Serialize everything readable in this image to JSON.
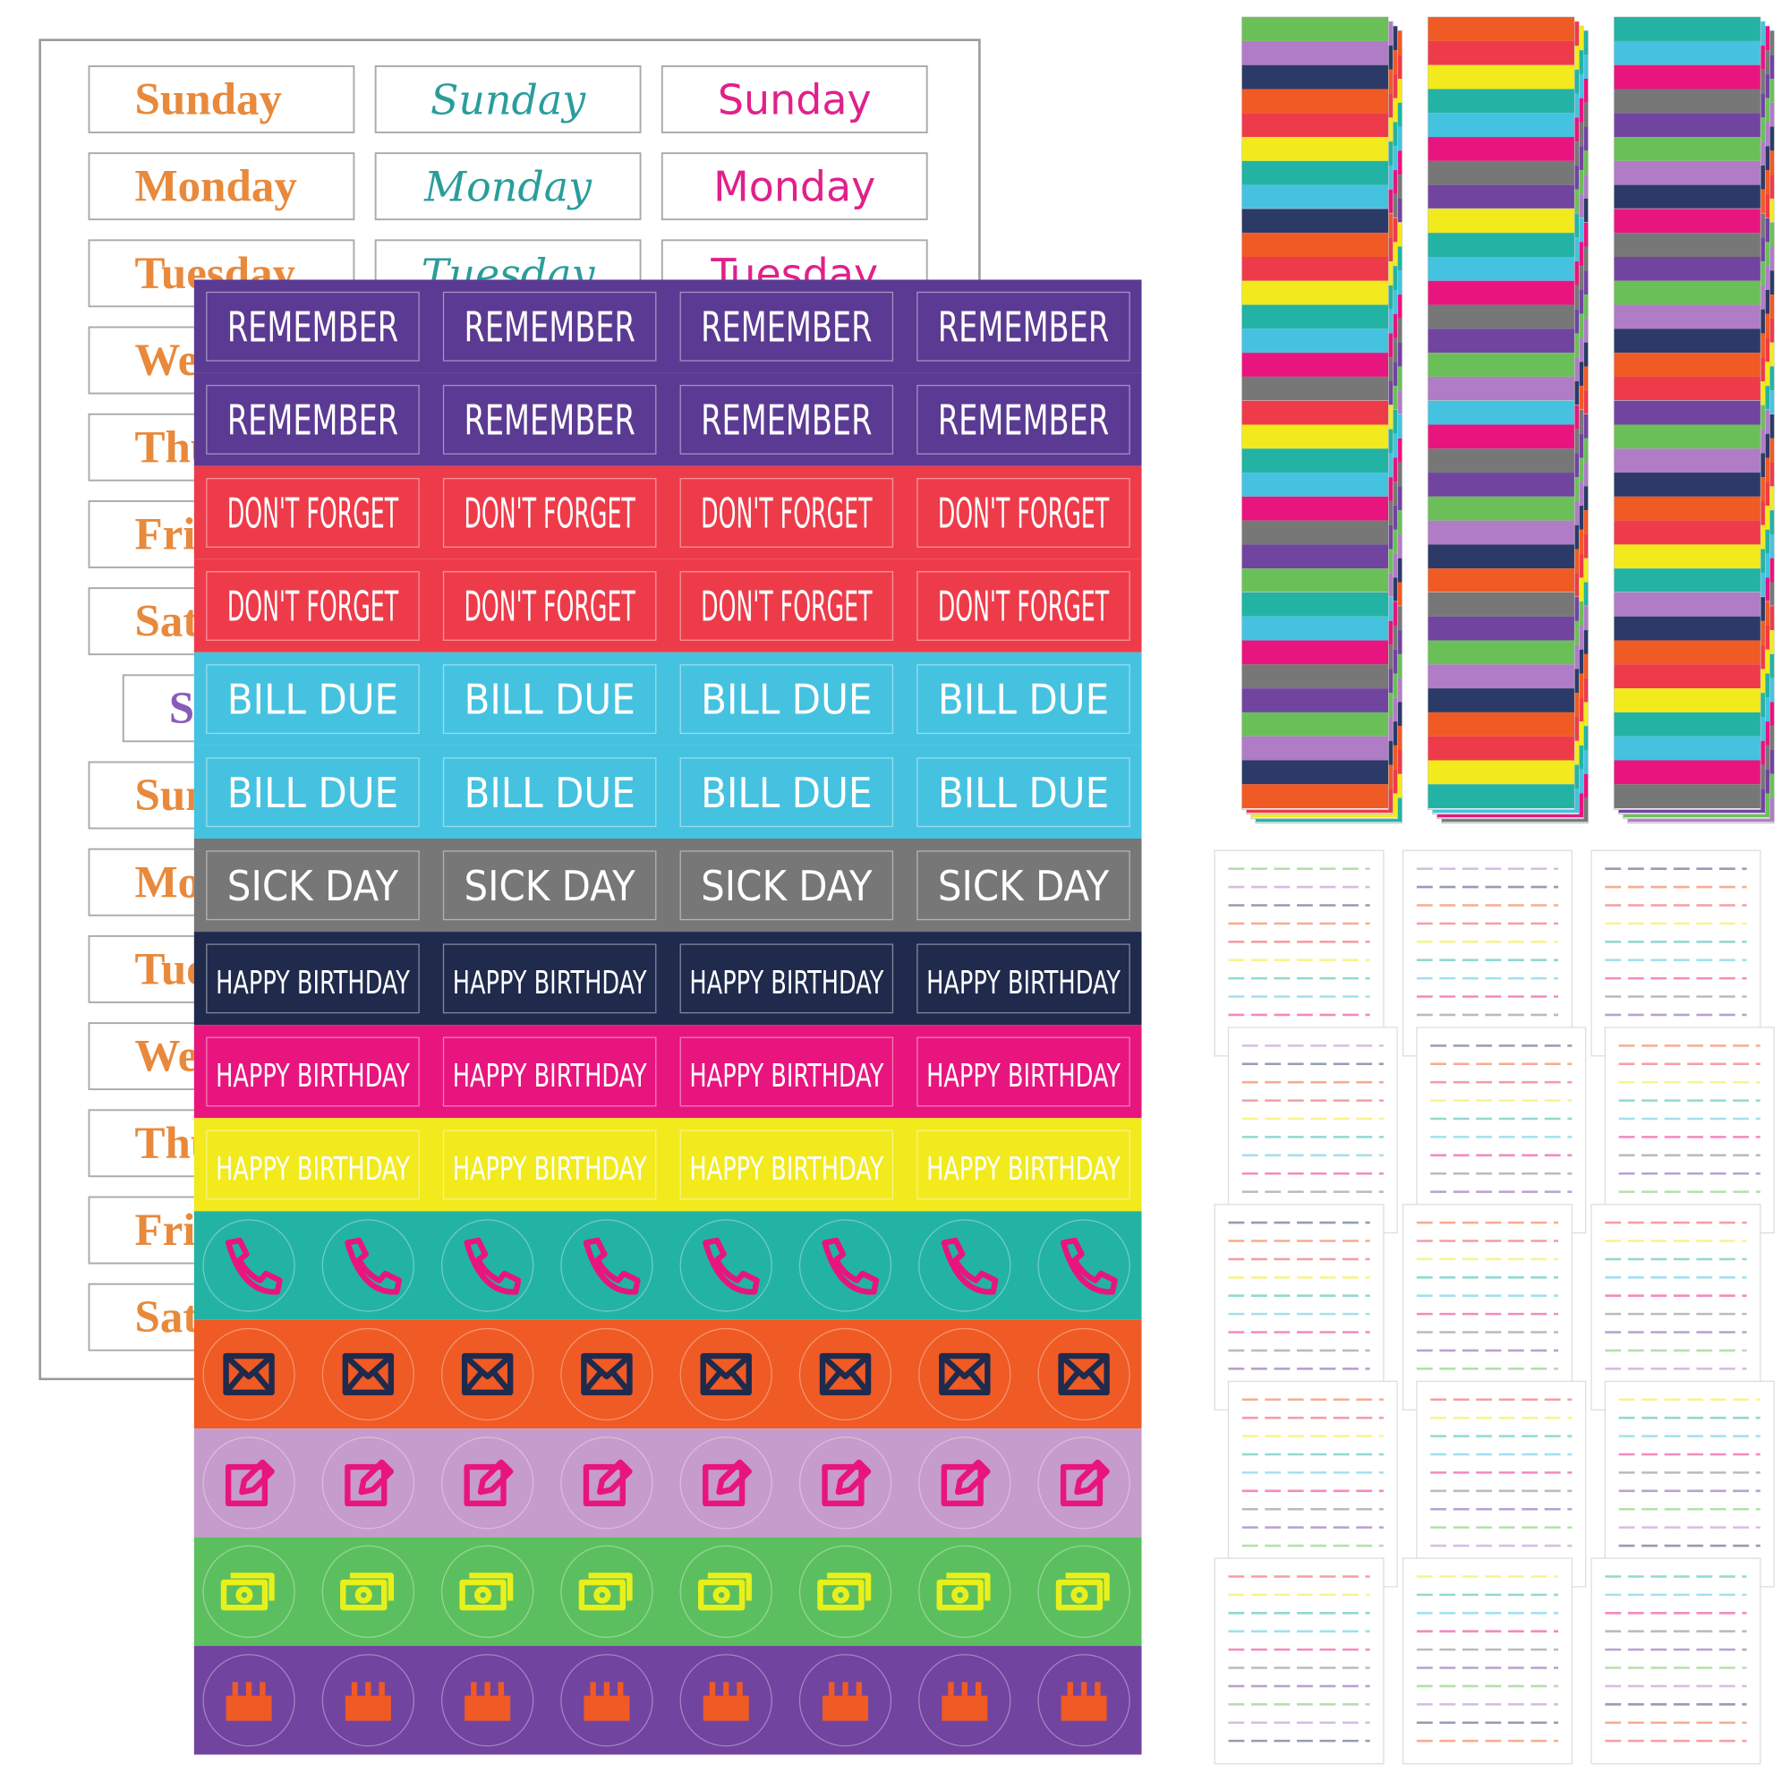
{
  "back_sheet": {
    "columns": [
      {
        "color": "#e8893b",
        "days": [
          "Sunday",
          "Monday",
          "Tuesday",
          "Wednesday",
          "Thursday",
          "Friday",
          "Saturday",
          "Sunday",
          "Sunday",
          "Monday",
          "Tuesday",
          "Wednesday",
          "Thursday",
          "Friday",
          "Saturday"
        ]
      },
      {
        "color": "#2a9d9b",
        "days": [
          "Sunday",
          "Monday",
          "Tuesday"
        ]
      },
      {
        "color": "#e0218a",
        "days": [
          "Sunday",
          "Monday",
          "Tuesday"
        ]
      }
    ]
  },
  "front_sheet": {
    "label_rows": [
      {
        "text": "REMEMBER",
        "color": "#5b3a93",
        "text_color": "#ffffff"
      },
      {
        "text": "REMEMBER",
        "color": "#5b3a93",
        "text_color": "#ffffff"
      },
      {
        "text": "DON'T FORGET",
        "color": "#ee3b4a",
        "text_color": "#ffffff"
      },
      {
        "text": "DON'T FORGET",
        "color": "#ee3b4a",
        "text_color": "#ffffff"
      },
      {
        "text": "BILL DUE",
        "color": "#45c2e0",
        "text_color": "#ffffff"
      },
      {
        "text": "BILL DUE",
        "color": "#45c2e0",
        "text_color": "#ffffff"
      },
      {
        "text": "SICK DAY",
        "color": "#777777",
        "text_color": "#ffffff"
      },
      {
        "text": "HAPPY BIRTHDAY",
        "color": "#1f2a4d",
        "text_color": "#ffffff"
      },
      {
        "text": "HAPPY BIRTHDAY",
        "color": "#e8157f",
        "text_color": "#ffffff"
      },
      {
        "text": "HAPPY BIRTHDAY",
        "color": "#f2ea1c",
        "text_color": "#ffffff"
      }
    ]
  }
}
